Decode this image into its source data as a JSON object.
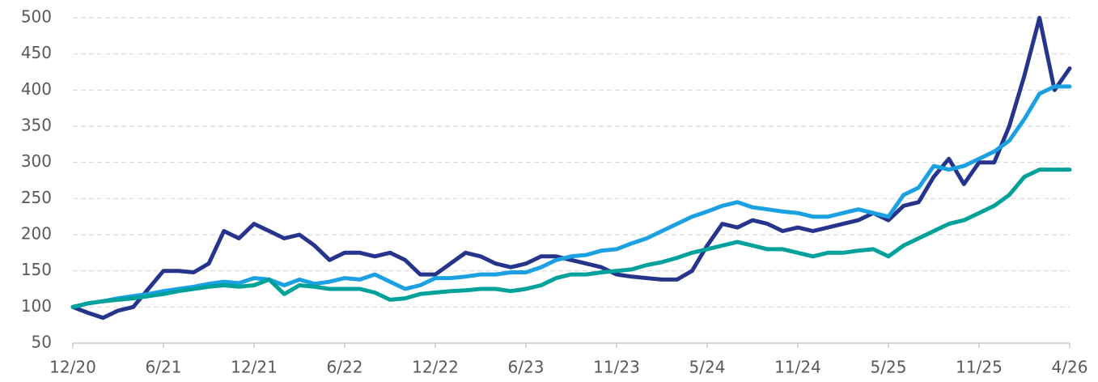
{
  "chart_data": {
    "type": "line",
    "categories": [
      "12/20",
      null,
      null,
      null,
      null,
      null,
      "6/21",
      null,
      null,
      null,
      null,
      null,
      "12/21",
      null,
      null,
      null,
      null,
      null,
      "6/22",
      null,
      null,
      null,
      null,
      null,
      "12/22",
      null,
      null,
      null,
      null,
      null,
      "6/23",
      null,
      null,
      null,
      null,
      null,
      "11/23",
      null,
      null,
      null,
      null,
      null,
      "5/24",
      null,
      null,
      null,
      null,
      null,
      "11/24",
      null,
      null,
      null,
      null,
      null,
      "5/25",
      null,
      null,
      null,
      null,
      null,
      "11/25",
      null,
      null,
      null,
      null,
      null,
      "4/26"
    ],
    "series": [
      {
        "color": "#27348b",
        "values": [
          100,
          92,
          85,
          95,
          100,
          125,
          150,
          150,
          148,
          160,
          205,
          195,
          215,
          205,
          195,
          200,
          185,
          165,
          175,
          175,
          170,
          175,
          165,
          145,
          145,
          160,
          175,
          170,
          160,
          155,
          160,
          170,
          170,
          165,
          160,
          155,
          145,
          142,
          140,
          138,
          138,
          150,
          185,
          215,
          210,
          220,
          215,
          205,
          210,
          205,
          210,
          215,
          220,
          230,
          220,
          240,
          245,
          280,
          305,
          270,
          300,
          300,
          350,
          420,
          500,
          400,
          430
        ]
      },
      {
        "color": "#1ba1e2",
        "values": [
          100,
          105,
          108,
          112,
          115,
          118,
          122,
          125,
          128,
          132,
          135,
          133,
          140,
          138,
          130,
          138,
          132,
          135,
          140,
          138,
          145,
          135,
          125,
          130,
          140,
          140,
          142,
          145,
          145,
          148,
          148,
          155,
          165,
          170,
          172,
          178,
          180,
          188,
          195,
          205,
          215,
          225,
          232,
          240,
          245,
          238,
          235,
          232,
          230,
          225,
          225,
          230,
          235,
          230,
          225,
          255,
          265,
          295,
          290,
          295,
          305,
          315,
          330,
          360,
          395,
          405,
          405
        ]
      },
      {
        "color": "#00a19a",
        "values": [
          100,
          105,
          108,
          110,
          112,
          115,
          118,
          122,
          125,
          128,
          130,
          128,
          130,
          138,
          118,
          130,
          128,
          125,
          125,
          125,
          120,
          110,
          112,
          118,
          120,
          122,
          123,
          125,
          125,
          122,
          125,
          130,
          140,
          145,
          145,
          148,
          150,
          152,
          158,
          162,
          168,
          175,
          180,
          185,
          190,
          185,
          180,
          180,
          175,
          170,
          175,
          175,
          178,
          180,
          170,
          185,
          195,
          205,
          215,
          220,
          230,
          240,
          255,
          280,
          290,
          290,
          290
        ]
      }
    ],
    "ylim": [
      50,
      500
    ],
    "yticks": [
      50,
      100,
      150,
      200,
      250,
      300,
      350,
      400,
      450,
      500
    ],
    "grid": true
  }
}
